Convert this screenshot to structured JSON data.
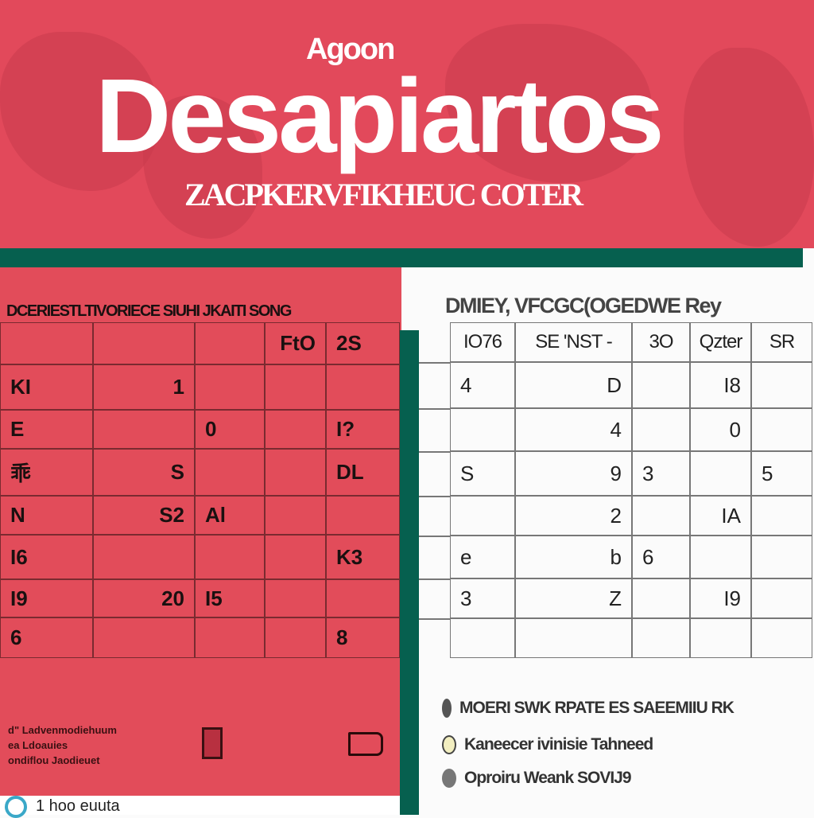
{
  "banner": {
    "supertitle": "Agoon",
    "title": "Desapiartos",
    "subtitle": "ZACPKERVFIKHEUC COTER",
    "accent_color": "#e2495b",
    "bar_color": "#06604f"
  },
  "left_table": {
    "header": "DCERIESTLTIVORIECE SIUHI JKAITI SONG",
    "rows": [
      [
        "",
        "",
        "",
        "FtO",
        "2S"
      ],
      [
        "KI",
        "1",
        "",
        "",
        ""
      ],
      [
        "E",
        "",
        "0",
        "",
        "I?"
      ],
      [
        "乖",
        "S",
        "",
        "",
        "DL"
      ],
      [
        "N",
        "S2",
        "Al",
        "",
        ""
      ],
      [
        "I6",
        "",
        "",
        "",
        "K3"
      ],
      [
        "I9",
        "20",
        "I5",
        "",
        ""
      ],
      [
        "6",
        "",
        "",
        "",
        "8"
      ]
    ]
  },
  "right_table": {
    "header": "DMIEY, VFCGC(OGEDWE Rey",
    "columns": [
      "IO76",
      "SE 'NST -",
      "3O",
      "Qzter",
      "SR"
    ],
    "rows": [
      [
        "4",
        "D",
        "",
        "I8",
        ""
      ],
      [
        "",
        "4",
        "",
        "0",
        ""
      ],
      [
        "S",
        "9",
        "3",
        "",
        "5"
      ],
      [
        "",
        "2",
        "",
        "IA",
        ""
      ],
      [
        "e",
        "b",
        "6",
        "",
        ""
      ],
      [
        "3",
        "Z",
        "",
        "I9",
        ""
      ],
      [
        "",
        "",
        "",
        "",
        ""
      ]
    ]
  },
  "left_notes": [
    "d\" Ladvenmodiehuum",
    "ea Ldoauies",
    "ondiflou Jaodieuet"
  ],
  "footer_text": "1 hoo euuta",
  "legend": [
    {
      "label": "MOERI SWK RPATE ES SAEEMIIU RK",
      "color": "#555555"
    },
    {
      "label": "Kaneecer ivinisie Tahneed",
      "color": "#f2eec0"
    },
    {
      "label": "Oproiru Weank SOVIJ9",
      "color": "#777777"
    }
  ]
}
